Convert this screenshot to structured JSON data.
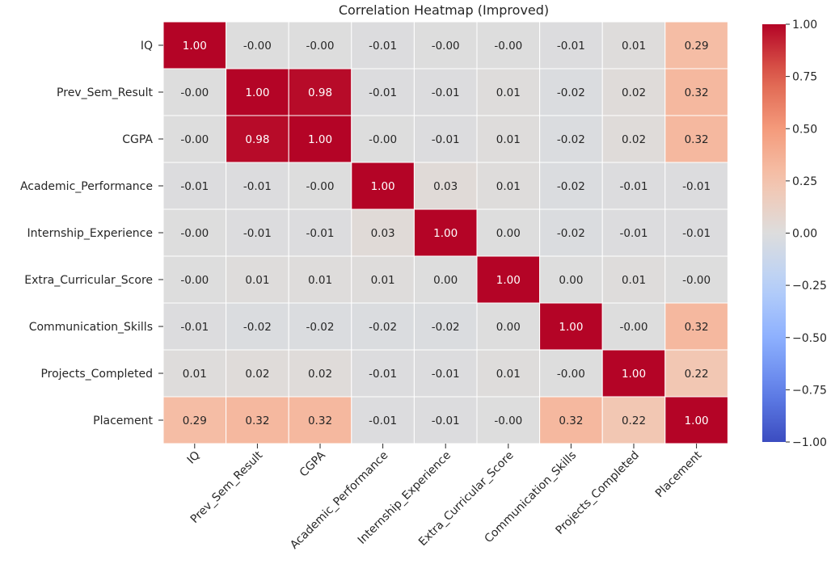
{
  "chart_data": {
    "type": "heatmap",
    "title": "Correlation Heatmap (Improved)",
    "rows": [
      "IQ",
      "Prev_Sem_Result",
      "CGPA",
      "Academic_Performance",
      "Internship_Experience",
      "Extra_Curricular_Score",
      "Communication_Skills",
      "Projects_Completed",
      "Placement"
    ],
    "columns": [
      "IQ",
      "Prev_Sem_Result",
      "CGPA",
      "Academic_Performance",
      "Internship_Experience",
      "Extra_Curricular_Score",
      "Communication_Skills",
      "Projects_Completed",
      "Placement"
    ],
    "values": [
      [
        1.0,
        -0.0,
        -0.0,
        -0.01,
        -0.0,
        -0.0,
        -0.01,
        0.01,
        0.29
      ],
      [
        -0.0,
        1.0,
        0.98,
        -0.01,
        -0.01,
        0.01,
        -0.02,
        0.02,
        0.32
      ],
      [
        -0.0,
        0.98,
        1.0,
        -0.0,
        -0.01,
        0.01,
        -0.02,
        0.02,
        0.32
      ],
      [
        -0.01,
        -0.01,
        -0.0,
        1.0,
        0.03,
        0.01,
        -0.02,
        -0.01,
        -0.01
      ],
      [
        -0.0,
        -0.01,
        -0.01,
        0.03,
        1.0,
        0.0,
        -0.02,
        -0.01,
        -0.01
      ],
      [
        -0.0,
        0.01,
        0.01,
        0.01,
        0.0,
        1.0,
        0.0,
        0.01,
        -0.0
      ],
      [
        -0.01,
        -0.02,
        -0.02,
        -0.02,
        -0.02,
        0.0,
        1.0,
        -0.0,
        0.32
      ],
      [
        0.01,
        0.02,
        0.02,
        -0.01,
        -0.01,
        0.01,
        -0.0,
        1.0,
        0.22
      ],
      [
        0.29,
        0.32,
        0.32,
        -0.01,
        -0.01,
        -0.0,
        0.32,
        0.22,
        1.0
      ]
    ],
    "cell_labels": [
      [
        "1.00",
        "-0.00",
        "-0.00",
        "-0.01",
        "-0.00",
        "-0.00",
        "-0.01",
        "0.01",
        "0.29"
      ],
      [
        "-0.00",
        "1.00",
        "0.98",
        "-0.01",
        "-0.01",
        "0.01",
        "-0.02",
        "0.02",
        "0.32"
      ],
      [
        "-0.00",
        "0.98",
        "1.00",
        "-0.00",
        "-0.01",
        "0.01",
        "-0.02",
        "0.02",
        "0.32"
      ],
      [
        "-0.01",
        "-0.01",
        "-0.00",
        "1.00",
        "0.03",
        "0.01",
        "-0.02",
        "-0.01",
        "-0.01"
      ],
      [
        "-0.00",
        "-0.01",
        "-0.01",
        "0.03",
        "1.00",
        "0.00",
        "-0.02",
        "-0.01",
        "-0.01"
      ],
      [
        "-0.00",
        "0.01",
        "0.01",
        "0.01",
        "0.00",
        "1.00",
        "0.00",
        "0.01",
        "-0.00"
      ],
      [
        "-0.01",
        "-0.02",
        "-0.02",
        "-0.02",
        "-0.02",
        "0.00",
        "1.00",
        "-0.00",
        "0.32"
      ],
      [
        "0.01",
        "0.02",
        "0.02",
        "-0.01",
        "-0.01",
        "0.01",
        "-0.00",
        "1.00",
        "0.22"
      ],
      [
        "0.29",
        "0.32",
        "0.32",
        "-0.01",
        "-0.01",
        "-0.00",
        "0.32",
        "0.22",
        "1.00"
      ]
    ],
    "colormap": "coolwarm",
    "vmin": -1.0,
    "vmax": 1.0,
    "colorbar_ticks": [
      -1.0,
      -0.75,
      -0.5,
      -0.25,
      0.0,
      0.25,
      0.5,
      0.75,
      1.0
    ],
    "colorbar_tick_labels": [
      "−1.00",
      "−0.75",
      "−0.50",
      "−0.25",
      "0.00",
      "0.25",
      "0.50",
      "0.75",
      "1.00"
    ],
    "xlabel": "",
    "ylabel": ""
  }
}
